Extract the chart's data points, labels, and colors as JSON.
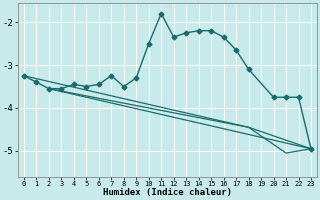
{
  "xlabel": "Humidex (Indice chaleur)",
  "background_color": "#c8eaea",
  "grid_color": "#ffffff",
  "line_color": "#1a6b6b",
  "xlim": [
    -0.5,
    23.5
  ],
  "ylim": [
    -5.6,
    -1.55
  ],
  "yticks": [
    -5,
    -4,
    -3,
    -2
  ],
  "xticks": [
    0,
    1,
    2,
    3,
    4,
    5,
    6,
    7,
    8,
    9,
    10,
    11,
    12,
    13,
    14,
    15,
    16,
    17,
    18,
    19,
    20,
    21,
    22,
    23
  ],
  "main_series": {
    "x": [
      0,
      1,
      2,
      3,
      4,
      5,
      6,
      7,
      8,
      9,
      10,
      11,
      12,
      13,
      14,
      15,
      16,
      17,
      18,
      20,
      21,
      22,
      23
    ],
    "y": [
      -3.25,
      -3.4,
      -3.55,
      -3.55,
      -3.45,
      -3.5,
      -3.45,
      -3.25,
      -3.5,
      -3.3,
      -2.5,
      -1.8,
      -2.35,
      -2.25,
      -2.2,
      -2.2,
      -2.35,
      -2.65,
      -3.1,
      -3.75,
      -3.75,
      -3.75,
      -4.95
    ]
  },
  "straight_lines": [
    {
      "x": [
        2,
        23
      ],
      "y": [
        -3.55,
        -4.95
      ]
    },
    {
      "x": [
        2,
        18,
        23
      ],
      "y": [
        -3.55,
        -4.45,
        -4.95
      ]
    },
    {
      "x": [
        0,
        18,
        21,
        23
      ],
      "y": [
        -3.25,
        -4.45,
        -5.05,
        -4.95
      ]
    }
  ]
}
